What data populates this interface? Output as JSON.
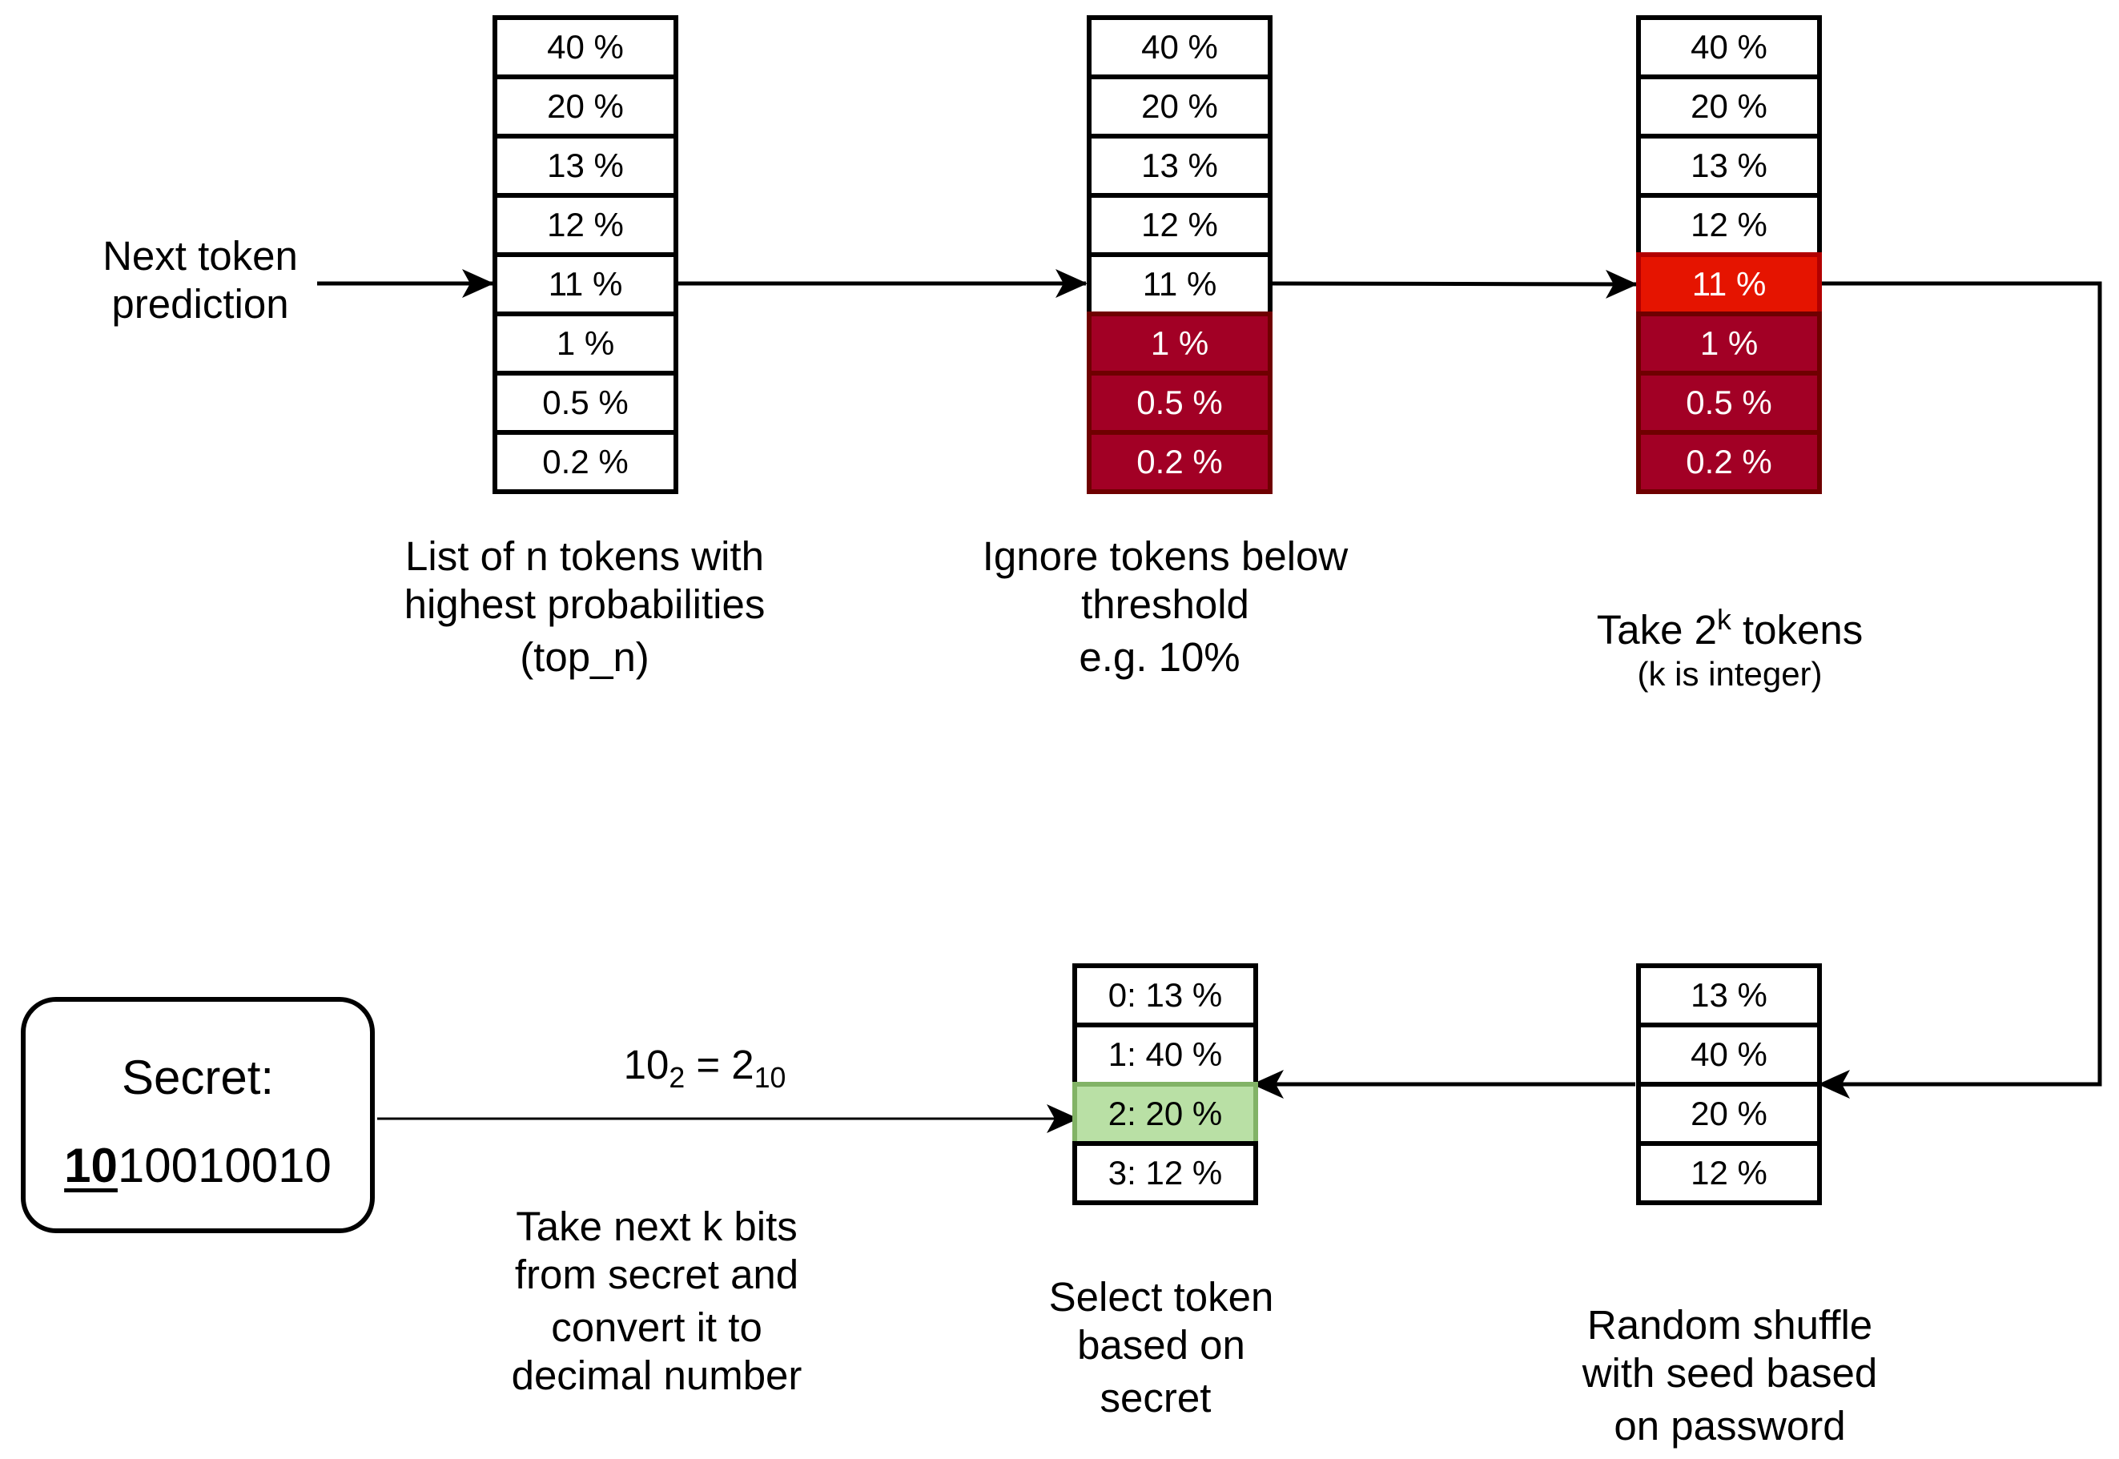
{
  "input_label": [
    "Next token",
    "prediction"
  ],
  "stage1": {
    "cells": [
      "40 %",
      "20 %",
      "13 %",
      "12 %",
      "11 %",
      "1 %",
      "0.5 %",
      "0.2 %"
    ],
    "caption": [
      "List of n tokens with",
      "highest probabilities",
      "(top_n)"
    ]
  },
  "stage2": {
    "cells": [
      "40 %",
      "20 %",
      "13 %",
      "12 %",
      "11 %",
      "1 %",
      "0.5 %",
      "0.2 %"
    ],
    "ignored_from": 5,
    "caption": [
      "Ignore tokens below",
      "threshold",
      "e.g. 10%"
    ]
  },
  "stage3": {
    "cells": [
      "40 %",
      "20 %",
      "13 %",
      "12 %",
      "11 %",
      "1 %",
      "0.5 %",
      "0.2 %"
    ],
    "taken_index": 4,
    "ignored_from": 5,
    "caption_main": "Take 2",
    "caption_sup": "k",
    "caption_tail": " tokens",
    "caption_sub": "(k is integer)"
  },
  "stage4": {
    "cells": [
      "13 %",
      "40 %",
      "20 %",
      "12 %"
    ],
    "caption": [
      "Random shuffle",
      "with seed based",
      "on password"
    ]
  },
  "stage5": {
    "cells": [
      "0: 13 %",
      "1: 40 %",
      "2: 20 %",
      "3: 12 %"
    ],
    "selected_index": 2,
    "caption": [
      "Select token",
      "based on",
      "secret"
    ]
  },
  "conversion": {
    "base": "10",
    "base_sub": "2",
    "equals": " = 2",
    "result_sub": "10",
    "caption": [
      "Take next k bits",
      "from secret and",
      "convert it to",
      "decimal number"
    ]
  },
  "secret": {
    "title": "Secret:",
    "bits_highlight": "10",
    "bits_rest": "10010010"
  },
  "colors": {
    "ignored": "#a20025",
    "taken": "#e51400",
    "selected": "#b9e0a5"
  }
}
